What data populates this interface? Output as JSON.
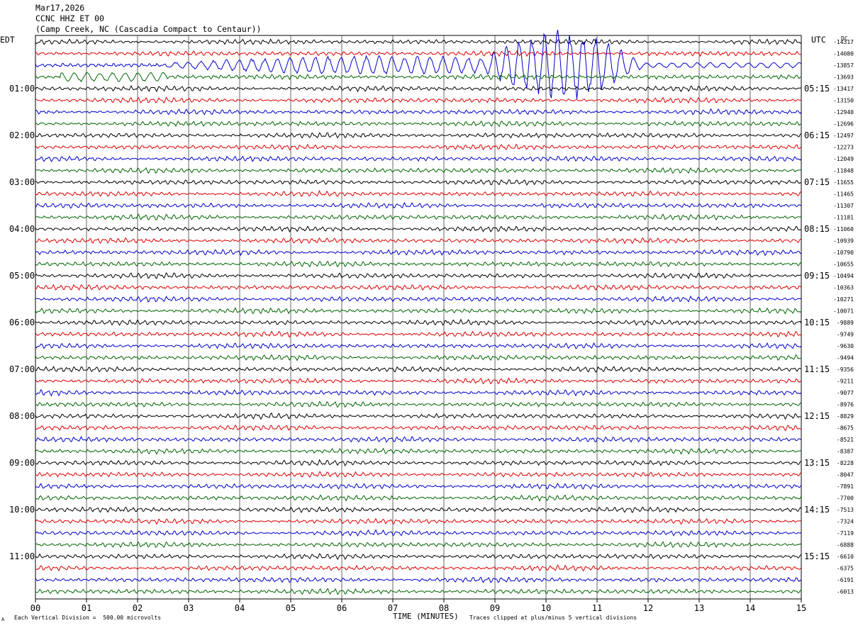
{
  "header": {
    "date": "Mar17,2026",
    "station": "CCNC HHZ ET 00",
    "location": "(Camp Creek, NC (Cascadia Compact to Centaur))"
  },
  "left_label": "EDT",
  "right_label": "UTC",
  "dc_label": "DC",
  "footer": {
    "scale_note": "Each Vertical Division =  500.00 microvolts",
    "xlabel": "TIME (MINUTES)",
    "clip_note": "Traces clipped at plus/minus 5 vertical divisions",
    "corner_mark": "A"
  },
  "chart_data": {
    "type": "line",
    "title": "CCNC HHZ ET 00",
    "xlabel": "TIME (MINUTES)",
    "xlim": [
      0,
      15
    ],
    "x_ticks": [
      "00",
      "01",
      "02",
      "03",
      "04",
      "05",
      "06",
      "07",
      "08",
      "09",
      "10",
      "11",
      "12",
      "13",
      "14",
      "15"
    ],
    "trace_colors": [
      "#000000",
      "#dd0000",
      "#0000cc",
      "#006600"
    ],
    "traces_per_hour": 4,
    "minutes_per_trace": 15,
    "hour_labels_edt": [
      "01:00",
      "02:00",
      "03:00",
      "04:00",
      "05:00",
      "06:00",
      "07:00",
      "08:00",
      "09:00",
      "10:00",
      "11:00"
    ],
    "hour_labels_utc": [
      "05:15",
      "06:15",
      "07:15",
      "08:15",
      "09:15",
      "10:15",
      "11:15",
      "12:15",
      "13:15",
      "14:15",
      "15:15"
    ],
    "dc_offsets": [
      "-14317",
      "-14080",
      "-13857",
      "-13693",
      "-13417",
      "-13150",
      "-12940",
      "-12696",
      "-12497",
      "-12273",
      "-12049",
      "-11848",
      "-11655",
      "-11465",
      "-11307",
      "-11181",
      "-11060",
      "-10939",
      "-10790",
      "-10655",
      "-10494",
      "-10363",
      "-10271",
      "-10071",
      "-9889",
      "-9749",
      "-9630",
      "-9494",
      "-9356",
      "-9211",
      "-9077",
      "-8976",
      "-8829",
      "-8675",
      "-8521",
      "-8387",
      "-8228",
      "-8047",
      "-7891",
      "-7700",
      "-7513",
      "-7324",
      "-7119",
      "-6888",
      "-6610",
      "-6375",
      "-6191",
      "-6013"
    ],
    "events": [
      {
        "trace_index": 2,
        "start_minute": 2.6,
        "end_minute": 15,
        "note": "large-amplitude signal, clipped"
      },
      {
        "trace_index": 3,
        "start_minute": 0.5,
        "end_minute": 2.6,
        "note": "elevated amplitude"
      }
    ],
    "grid": true
  }
}
